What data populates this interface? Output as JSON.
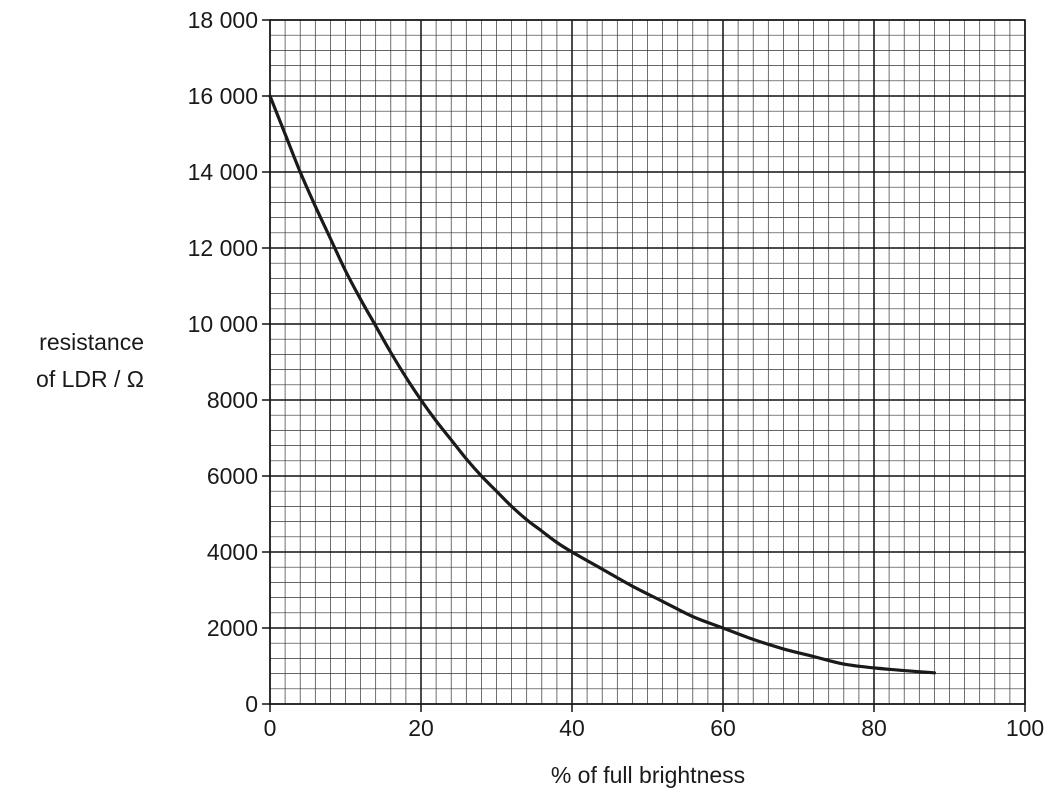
{
  "chart_data": {
    "type": "line",
    "title": "",
    "xlabel": "% of full brightness",
    "ylabel_lines": [
      "resistance",
      "of LDR / Ω"
    ],
    "xlim": [
      0,
      100
    ],
    "ylim": [
      0,
      18000
    ],
    "x_major_step": 20,
    "x_minor_step": 2,
    "y_major_step": 2000,
    "y_minor_step": 400,
    "grid": true,
    "x_tick_labels": [
      "0",
      "20",
      "40",
      "60",
      "80",
      "100"
    ],
    "y_tick_labels": [
      "0",
      "2000",
      "4000",
      "6000",
      "8000",
      "10 000",
      "12 000",
      "14 000",
      "16 000",
      "18 000"
    ],
    "series": [
      {
        "x": [
          0,
          2,
          4,
          6,
          8,
          10,
          12,
          14,
          16,
          18,
          20,
          22,
          24,
          26,
          28,
          30,
          32,
          34,
          36,
          38,
          40,
          44,
          48,
          52,
          56,
          60,
          64,
          68,
          72,
          76,
          80,
          84,
          88
        ],
        "y": [
          16000,
          15000,
          14000,
          13100,
          12250,
          11400,
          10650,
          9950,
          9250,
          8600,
          8000,
          7450,
          6950,
          6450,
          6000,
          5600,
          5200,
          4850,
          4550,
          4250,
          4000,
          3550,
          3100,
          2700,
          2300,
          2000,
          1700,
          1450,
          1250,
          1050,
          950,
          880,
          820
        ]
      }
    ]
  }
}
